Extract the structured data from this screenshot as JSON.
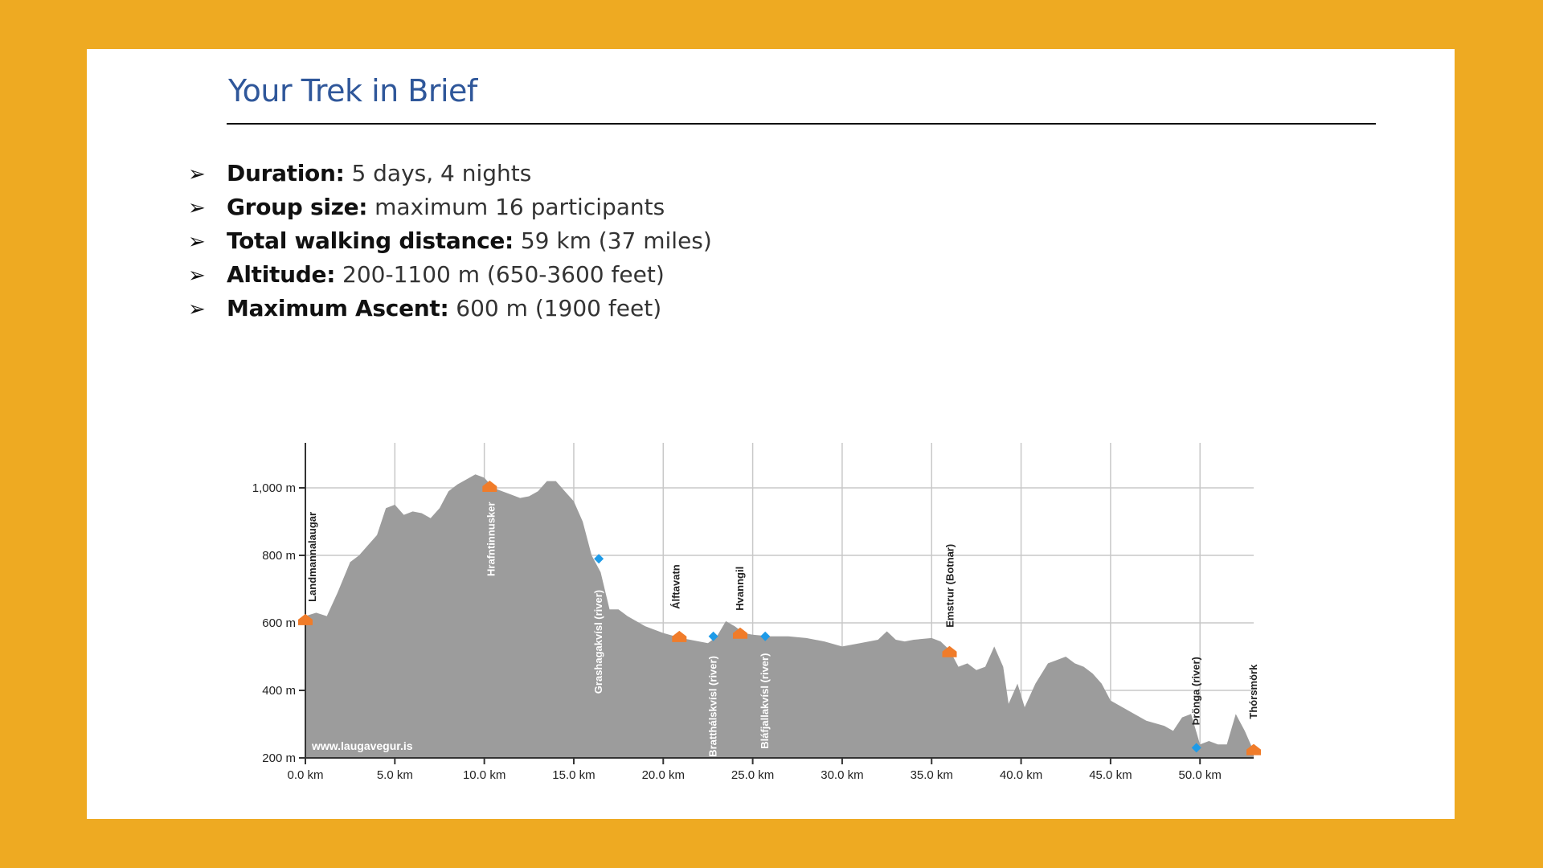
{
  "slide": {
    "title": "Your Trek in Brief",
    "bullets": [
      {
        "label": "Duration:",
        "value": "5 days, 4 nights"
      },
      {
        "label": "Group size:",
        "value": "maximum 16 participants"
      },
      {
        "label": "Total walking distance:",
        "value": "59 km (37 miles)"
      },
      {
        "label": "Altitude:",
        "value": "200-1100 m (650-3600 feet)"
      },
      {
        "label": "Maximum Ascent:",
        "value": "600 m (1900 feet)"
      }
    ],
    "bullet_icon": "arrowhead-bullet-icon"
  },
  "chart_data": {
    "type": "area",
    "xlabel": "",
    "ylabel": "",
    "xlim": [
      0,
      53
    ],
    "ylim": [
      200,
      1100
    ],
    "x_ticks": [
      0,
      5,
      10,
      15,
      20,
      25,
      30,
      35,
      40,
      45,
      50
    ],
    "x_tick_labels": [
      "0.0 km",
      "5.0 km",
      "10.0 km",
      "15.0 km",
      "20.0 km",
      "25.0 km",
      "30.0 km",
      "35.0 km",
      "40.0 km",
      "45.0 km",
      "50.0 km"
    ],
    "y_ticks": [
      200,
      400,
      600,
      800,
      1000
    ],
    "y_tick_labels": [
      "200 m",
      "400 m",
      "600 m",
      "800 m",
      "1,000 m"
    ],
    "grid": true,
    "watermark": "www.laugavegur.is",
    "colors": {
      "area": "#9C9C9C",
      "grid": "#C8C8C8",
      "hut": "#F07C2A",
      "river": "#1E9BE8",
      "axis": "#333333"
    },
    "series": [
      {
        "values": [
          {
            "x": 0,
            "y": 620
          },
          {
            "x": 0.6,
            "y": 630
          },
          {
            "x": 1.2,
            "y": 620
          },
          {
            "x": 1.8,
            "y": 690
          },
          {
            "x": 2.5,
            "y": 780
          },
          {
            "x": 3.0,
            "y": 800
          },
          {
            "x": 3.5,
            "y": 830
          },
          {
            "x": 4.0,
            "y": 860
          },
          {
            "x": 4.5,
            "y": 940
          },
          {
            "x": 5.0,
            "y": 950
          },
          {
            "x": 5.5,
            "y": 920
          },
          {
            "x": 6.0,
            "y": 930
          },
          {
            "x": 6.5,
            "y": 925
          },
          {
            "x": 7.0,
            "y": 910
          },
          {
            "x": 7.5,
            "y": 940
          },
          {
            "x": 8.0,
            "y": 990
          },
          {
            "x": 8.5,
            "y": 1010
          },
          {
            "x": 9.0,
            "y": 1025
          },
          {
            "x": 9.5,
            "y": 1040
          },
          {
            "x": 10.0,
            "y": 1030
          },
          {
            "x": 10.5,
            "y": 1000
          },
          {
            "x": 11.0,
            "y": 990
          },
          {
            "x": 11.5,
            "y": 980
          },
          {
            "x": 12.0,
            "y": 970
          },
          {
            "x": 12.5,
            "y": 975
          },
          {
            "x": 13.0,
            "y": 990
          },
          {
            "x": 13.5,
            "y": 1020
          },
          {
            "x": 14.0,
            "y": 1020
          },
          {
            "x": 14.5,
            "y": 990
          },
          {
            "x": 15.0,
            "y": 960
          },
          {
            "x": 15.5,
            "y": 900
          },
          {
            "x": 16.0,
            "y": 800
          },
          {
            "x": 16.5,
            "y": 750
          },
          {
            "x": 17.0,
            "y": 640
          },
          {
            "x": 17.5,
            "y": 640
          },
          {
            "x": 18.0,
            "y": 620
          },
          {
            "x": 19.0,
            "y": 590
          },
          {
            "x": 20.0,
            "y": 570
          },
          {
            "x": 21.0,
            "y": 555
          },
          {
            "x": 22.0,
            "y": 545
          },
          {
            "x": 22.5,
            "y": 540
          },
          {
            "x": 23.0,
            "y": 560
          },
          {
            "x": 23.5,
            "y": 605
          },
          {
            "x": 24.0,
            "y": 590
          },
          {
            "x": 24.5,
            "y": 570
          },
          {
            "x": 25.0,
            "y": 565
          },
          {
            "x": 26.0,
            "y": 560
          },
          {
            "x": 27.0,
            "y": 560
          },
          {
            "x": 28.0,
            "y": 555
          },
          {
            "x": 29.0,
            "y": 545
          },
          {
            "x": 30.0,
            "y": 530
          },
          {
            "x": 31.0,
            "y": 540
          },
          {
            "x": 31.5,
            "y": 545
          },
          {
            "x": 32.0,
            "y": 550
          },
          {
            "x": 32.5,
            "y": 575
          },
          {
            "x": 33.0,
            "y": 550
          },
          {
            "x": 33.5,
            "y": 545
          },
          {
            "x": 34.0,
            "y": 550
          },
          {
            "x": 35.0,
            "y": 555
          },
          {
            "x": 35.5,
            "y": 545
          },
          {
            "x": 36.0,
            "y": 520
          },
          {
            "x": 36.5,
            "y": 470
          },
          {
            "x": 37.0,
            "y": 480
          },
          {
            "x": 37.5,
            "y": 460
          },
          {
            "x": 38.0,
            "y": 470
          },
          {
            "x": 38.5,
            "y": 530
          },
          {
            "x": 39.0,
            "y": 470
          },
          {
            "x": 39.3,
            "y": 360
          },
          {
            "x": 39.8,
            "y": 420
          },
          {
            "x": 40.2,
            "y": 350
          },
          {
            "x": 40.8,
            "y": 420
          },
          {
            "x": 41.5,
            "y": 480
          },
          {
            "x": 42.0,
            "y": 490
          },
          {
            "x": 42.5,
            "y": 500
          },
          {
            "x": 43.0,
            "y": 480
          },
          {
            "x": 43.5,
            "y": 470
          },
          {
            "x": 44.0,
            "y": 450
          },
          {
            "x": 44.5,
            "y": 420
          },
          {
            "x": 45.0,
            "y": 370
          },
          {
            "x": 46.0,
            "y": 340
          },
          {
            "x": 47.0,
            "y": 310
          },
          {
            "x": 48.0,
            "y": 295
          },
          {
            "x": 48.5,
            "y": 280
          },
          {
            "x": 49.0,
            "y": 320
          },
          {
            "x": 49.5,
            "y": 330
          },
          {
            "x": 50.0,
            "y": 240
          },
          {
            "x": 50.5,
            "y": 250
          },
          {
            "x": 51.0,
            "y": 240
          },
          {
            "x": 51.5,
            "y": 240
          },
          {
            "x": 52.0,
            "y": 330
          },
          {
            "x": 52.5,
            "y": 280
          },
          {
            "x": 53.0,
            "y": 220
          }
        ]
      }
    ],
    "huts": [
      {
        "name": "Landmannalaugar",
        "x": 0.0,
        "y": 605
      },
      {
        "name": "Hrafntinnusker",
        "x": 10.3,
        "y": 1000
      },
      {
        "name": "Álftavatn",
        "x": 20.9,
        "y": 555
      },
      {
        "name": "Hvanngil",
        "x": 24.3,
        "y": 565
      },
      {
        "name": "Emstrur (Botnar)",
        "x": 36.0,
        "y": 510
      },
      {
        "name": "Thórsmörk",
        "x": 53.0,
        "y": 220
      }
    ],
    "rivers": [
      {
        "name": "Grashagakvísl (river)",
        "x": 16.4,
        "y": 790
      },
      {
        "name": "Bratthálskvísl (river)",
        "x": 22.8,
        "y": 560
      },
      {
        "name": "Bláfjallakvísl (river)",
        "x": 25.7,
        "y": 560
      },
      {
        "name": "Þrönga (river)",
        "x": 49.8,
        "y": 230
      }
    ]
  }
}
